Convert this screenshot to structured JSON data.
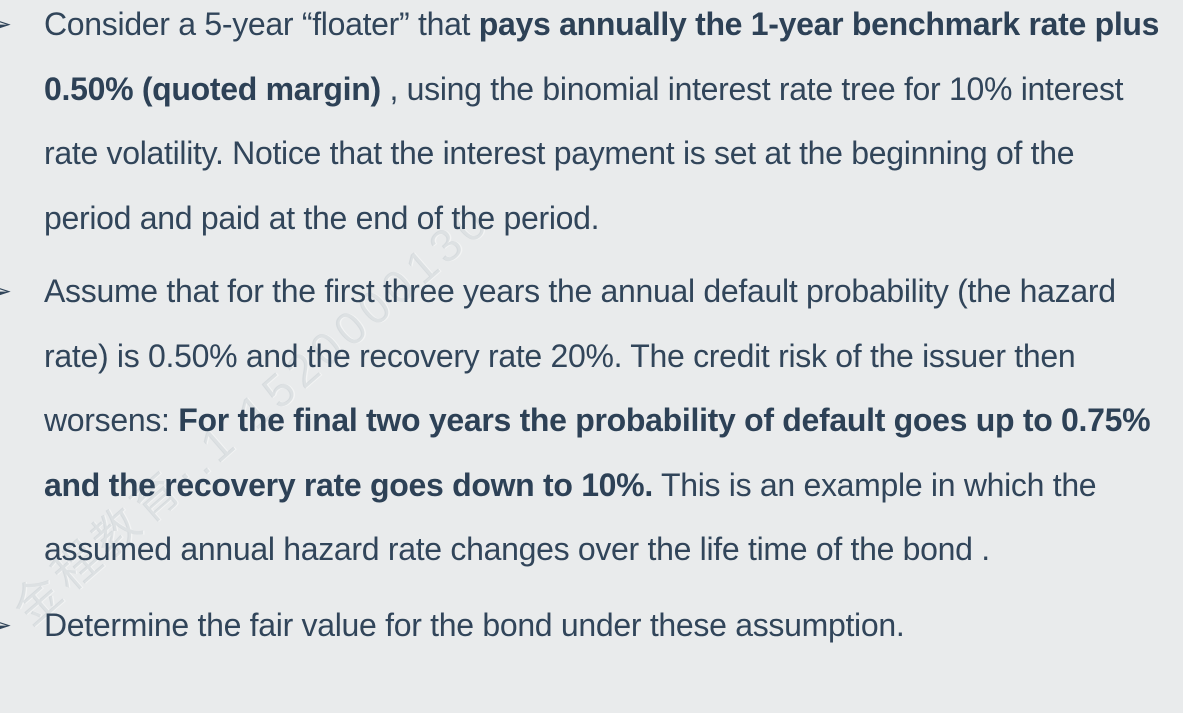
{
  "page": {
    "background": "#e9ebec",
    "text_color": "#31455a",
    "bullet_marker": "➢",
    "watermark_text": "金程教育·.1 1520000130"
  },
  "bullets": [
    {
      "segments": [
        {
          "text": "Consider a 5-year “floater” that ",
          "bold": false
        },
        {
          "text": "pays annually the 1-year benchmark rate plus 0.50% (quoted margin)",
          "bold": true
        },
        {
          "text": " , using the binomial interest rate tree for 10% interest rate volatility. Notice that the interest payment is set at the beginning of the period and paid at the end of the period.",
          "bold": false
        }
      ]
    },
    {
      "segments": [
        {
          "text": "Assume that for the first three years the annual default probability (the hazard rate) is 0.50% and the recovery rate 20%. The credit risk of the issuer then worsens: ",
          "bold": false
        },
        {
          "text": "For the final two years the probability of default goes up to 0.75% and the recovery rate goes down to 10%.",
          "bold": true
        },
        {
          "text": " This is an example in which the assumed annual hazard rate changes over the life time of the bond .",
          "bold": false
        }
      ]
    },
    {
      "segments": [
        {
          "text": "Determine the fair value for the bond under these assumption.",
          "bold": false
        }
      ]
    }
  ]
}
